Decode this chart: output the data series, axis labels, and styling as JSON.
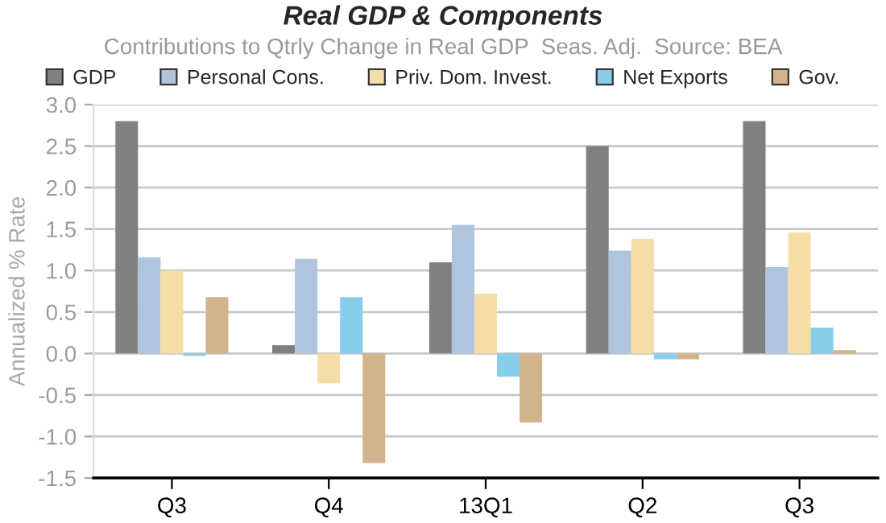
{
  "chart_data": {
    "type": "bar",
    "title": "Real GDP & Components",
    "subtitle": "Contributions to Qtrly Change in Real GDP  Seas. Adj.  Source: BEA",
    "ylabel": "Annualized % Rate",
    "categories": [
      "Q3",
      "Q4",
      "13Q1",
      "Q2",
      "Q3"
    ],
    "series": [
      {
        "name": "GDP",
        "color": "#808080",
        "values": [
          2.8,
          0.1,
          1.1,
          2.5,
          2.8
        ]
      },
      {
        "name": "Personal Cons.",
        "color": "#b0c4de",
        "values": [
          1.16,
          1.14,
          1.55,
          1.24,
          1.04
        ]
      },
      {
        "name": "Priv. Dom. Invest.",
        "color": "#f5dea5",
        "values": [
          1.0,
          -0.36,
          0.72,
          1.38,
          1.46
        ]
      },
      {
        "name": "Net Exports",
        "color": "#87ceeb",
        "values": [
          -0.03,
          0.68,
          -0.28,
          -0.07,
          0.31
        ]
      },
      {
        "name": "Gov.",
        "color": "#d2b48c",
        "values": [
          0.68,
          -1.32,
          -0.83,
          -0.07,
          0.04
        ]
      }
    ],
    "ylim": [
      -1.5,
      3.0
    ],
    "yticks": [
      {
        "value": -1.5,
        "label": "-1.5"
      },
      {
        "value": -1.0,
        "label": "-1.0"
      },
      {
        "value": -0.5,
        "label": "-0.5"
      },
      {
        "value": 0.0,
        "label": "0.0"
      },
      {
        "value": 0.5,
        "label": "0.5"
      },
      {
        "value": 1.0,
        "label": "1.0"
      },
      {
        "value": 1.5,
        "label": "1.5"
      },
      {
        "value": 2.0,
        "label": "2.0"
      },
      {
        "value": 2.5,
        "label": "2.5"
      },
      {
        "value": 3.0,
        "label": "3.0"
      }
    ],
    "grid": "y",
    "legend": "top"
  }
}
